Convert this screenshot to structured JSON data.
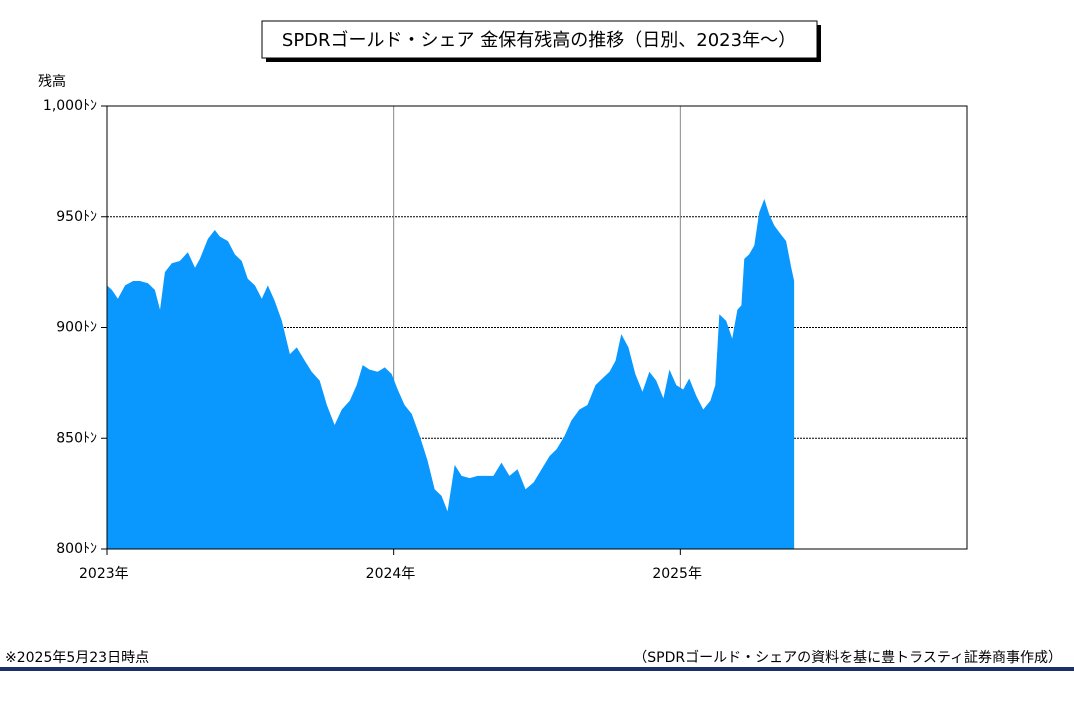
{
  "chart_data": {
    "type": "area",
    "title": "SPDRゴールド・シェア 金保有残高の推移（日別、2023年～）",
    "y_label": "残高",
    "note": "※2025年5月23日時点",
    "source": "（SPDRゴールド・シェアの資料を基に豊トラスティ証券商事作成）",
    "color": "#0a98ff",
    "grid": true,
    "xlim": [
      2023,
      2026
    ],
    "xticks": [
      {
        "value": 2023,
        "label": "2023年"
      },
      {
        "value": 2024,
        "label": "2024年"
      },
      {
        "value": 2025,
        "label": "2025年"
      }
    ],
    "ylim": [
      800,
      1000
    ],
    "yticks": [
      {
        "value": 800,
        "label": "800ﾄﾝ"
      },
      {
        "value": 850,
        "label": "850ﾄﾝ"
      },
      {
        "value": 900,
        "label": "900ﾄﾝ"
      },
      {
        "value": 950,
        "label": "950ﾄﾝ"
      },
      {
        "value": 1000,
        "label": "1,000ﾄﾝ"
      }
    ],
    "x": [
      2023.0,
      2023.017,
      2023.038,
      2023.063,
      2023.091,
      2023.115,
      2023.143,
      2023.167,
      2023.185,
      2023.202,
      2023.226,
      2023.254,
      2023.282,
      2023.307,
      2023.324,
      2023.352,
      2023.376,
      2023.394,
      2023.422,
      2023.446,
      2023.47,
      2023.491,
      2023.516,
      2023.54,
      2023.561,
      2023.585,
      2023.61,
      2023.638,
      2023.662,
      2023.69,
      2023.714,
      2023.742,
      2023.767,
      2023.794,
      2023.819,
      2023.847,
      2023.871,
      2023.892,
      2023.916,
      2023.944,
      2023.969,
      2023.993,
      2024.014,
      2024.038,
      2024.063,
      2024.091,
      2024.118,
      2024.143,
      2024.167,
      2024.188,
      2024.213,
      2024.237,
      2024.265,
      2024.293,
      2024.321,
      2024.348,
      2024.376,
      2024.404,
      2024.432,
      2024.46,
      2024.488,
      2024.516,
      2024.544,
      2024.568,
      2024.596,
      2024.62,
      2024.648,
      2024.676,
      2024.704,
      2024.728,
      2024.753,
      2024.774,
      2024.794,
      2024.819,
      2024.843,
      2024.868,
      2024.892,
      2024.916,
      2024.941,
      2024.962,
      2024.986,
      2025.01,
      2025.031,
      2025.056,
      2025.08,
      2025.105,
      2025.122,
      2025.136,
      2025.16,
      2025.181,
      2025.199,
      2025.213,
      2025.223,
      2025.24,
      2025.258,
      2025.275,
      2025.293,
      2025.31,
      2025.328,
      2025.345,
      2025.369,
      2025.387,
      2025.397
    ],
    "values": [
      919,
      917,
      913,
      919,
      921,
      921,
      920,
      917,
      908,
      925,
      929,
      930,
      934,
      927,
      931,
      940,
      944,
      941,
      939,
      933,
      930,
      922,
      919,
      913,
      919,
      912,
      903,
      888,
      891,
      885,
      880,
      876,
      865,
      856,
      863,
      867,
      874,
      883,
      881,
      880,
      882,
      879,
      872,
      865,
      861,
      851,
      840,
      827,
      824,
      817,
      838,
      833,
      832,
      833,
      833,
      833,
      839,
      833,
      836,
      827,
      830,
      836,
      842,
      845,
      851,
      858,
      863,
      865,
      874,
      877,
      880,
      885,
      897,
      891,
      879,
      871,
      880,
      876,
      868,
      881,
      874,
      872,
      877,
      869,
      863,
      867,
      874,
      906,
      903,
      895,
      908,
      910,
      931,
      933,
      937,
      952,
      958,
      951,
      946,
      943,
      939,
      927,
      921
    ]
  }
}
